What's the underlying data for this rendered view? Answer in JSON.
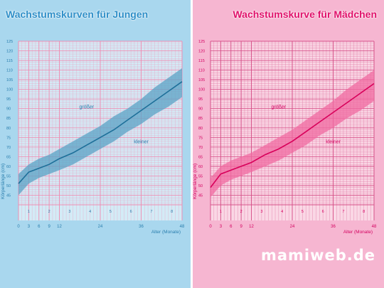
{
  "header": {
    "boys_title": "Wachstumskurven für Jungen",
    "girls_title": "Wachstumskurve für Mädchen"
  },
  "brand": "mamiweb.de",
  "colors": {
    "boys_bg": "#a9d7ee",
    "boys_plot": "#d3ebf6",
    "boys_grid": "#f08ab0",
    "boys_band": "#5aa3c6",
    "boys_line": "#1d6f99",
    "boys_text": "#2a7fae",
    "girls_bg": "#f6b6d1",
    "girls_plot": "#fad7e5",
    "girls_grid": "#d54c86",
    "girls_band": "#f06aa0",
    "girls_line": "#d8005a",
    "girls_text": "#d40060"
  },
  "chart_data": [
    {
      "type": "line",
      "panel": "boys",
      "title": "Wachstumskurven für Jungen",
      "ylabel": "Körperlänge (cm)",
      "xlabel": "Alter (Monate)",
      "ylim": [
        40,
        125
      ],
      "y_ticks": [
        45,
        50,
        55,
        60,
        65,
        70,
        75,
        80,
        85,
        90,
        95,
        100,
        105,
        110,
        115,
        120,
        125
      ],
      "x_ticks": [
        "0",
        "3",
        "6",
        "9",
        "12",
        "24",
        "36",
        "48"
      ],
      "x_ticks_upper": [
        "1",
        "2",
        "3",
        "4",
        "5",
        "6",
        "7",
        "8"
      ],
      "annotations": {
        "upper": "größer",
        "lower": "kleiner"
      },
      "x": [
        0,
        3,
        6,
        9,
        12,
        16,
        20,
        24,
        28,
        32,
        36,
        40,
        44,
        48
      ],
      "series": [
        {
          "values": [
            51,
            57,
            59,
            61,
            64,
            67,
            71,
            75,
            79,
            84,
            89,
            94,
            99,
            104
          ]
        },
        {
          "values": [
            45,
            51,
            54,
            56,
            58,
            61,
            65,
            69,
            73,
            78,
            82,
            87,
            91,
            96
          ]
        },
        {
          "values": [
            56,
            61,
            64,
            66,
            69,
            73,
            77,
            81,
            86,
            90,
            95,
            101,
            106,
            111
          ]
        }
      ]
    },
    {
      "type": "line",
      "panel": "girls",
      "title": "Wachstumskurve für Mädchen",
      "ylabel": "Körperlänge (cm)",
      "xlabel": "Alter (Monate)",
      "ylim": [
        40,
        125
      ],
      "y_ticks": [
        45,
        50,
        55,
        60,
        65,
        70,
        75,
        80,
        85,
        90,
        95,
        100,
        105,
        110,
        115,
        120,
        125
      ],
      "x_ticks": [
        "0",
        "3",
        "6",
        "9",
        "12",
        "24",
        "36",
        "48"
      ],
      "x_ticks_upper": [
        "1",
        "2",
        "3",
        "4",
        "5",
        "6",
        "7",
        "8"
      ],
      "annotations": {
        "upper": "größer",
        "lower": "kleiner"
      },
      "x": [
        0,
        3,
        6,
        9,
        12,
        16,
        20,
        24,
        28,
        32,
        36,
        40,
        44,
        48
      ],
      "series": [
        {
          "values": [
            49,
            56,
            58,
            60,
            62,
            66,
            69,
            73,
            78,
            83,
            88,
            93,
            98,
            103
          ]
        },
        {
          "values": [
            44,
            50,
            53,
            55,
            57,
            60,
            63,
            67,
            71,
            76,
            80,
            85,
            89,
            94
          ]
        },
        {
          "values": [
            54,
            60,
            63,
            65,
            67,
            71,
            75,
            79,
            84,
            89,
            94,
            100,
            105,
            110
          ]
        }
      ]
    }
  ]
}
